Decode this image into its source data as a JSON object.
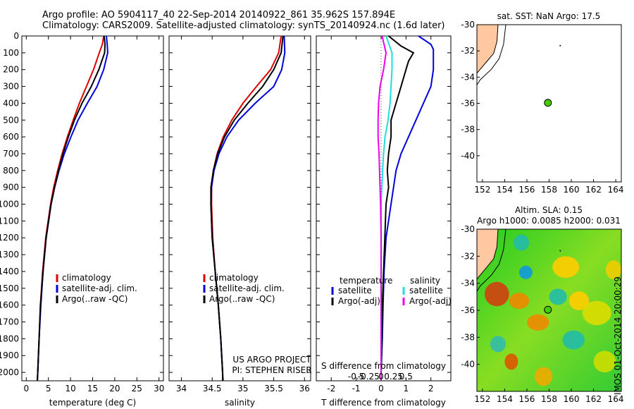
{
  "header": {
    "line1": "Argo profile: AO 5904117_40 22-Sep-2014 20140922_861 35.962S 157.894E",
    "line2": "Climatology: CARS2009. Satellite-adjusted climatology: synTS_20140924.nc (1.6d later)"
  },
  "colors": {
    "climatology": "#dd0000",
    "satellite": "#0000dd",
    "argo": "#000000",
    "sat_salinity": "#22dddd",
    "argo_salinity": "#ee00ee",
    "land": "#ffc8a0",
    "argo_marker": "#44cc00"
  },
  "side_text": "IMOS 01-Oct-2014 20:00:29",
  "chart_data": [
    {
      "id": "temperature",
      "type": "line",
      "xlabel": "temperature (deg C)",
      "ylabel": "",
      "xlim": [
        -1,
        31
      ],
      "ylim": [
        2050,
        0
      ],
      "xticks": [
        0,
        5,
        10,
        15,
        20,
        25,
        30
      ],
      "yticks": [
        0,
        100,
        200,
        300,
        400,
        500,
        600,
        700,
        800,
        900,
        1000,
        1100,
        1200,
        1300,
        1400,
        1500,
        1600,
        1700,
        1800,
        1900,
        2000
      ],
      "legend": {
        "position": "lower-center",
        "entries": [
          "climatology",
          "satellite-adj. clim.",
          "Argo(..raw -QC)"
        ]
      },
      "series": [
        {
          "name": "climatology",
          "color": "#dd0000",
          "depth": [
            0,
            50,
            100,
            200,
            300,
            400,
            500,
            600,
            700,
            800,
            900,
            1000,
            1200,
            1400,
            1600,
            1800,
            2000,
            2050
          ],
          "values": [
            17.5,
            17.2,
            16.5,
            15.2,
            13.6,
            12.0,
            10.6,
            9.3,
            8.1,
            7.1,
            6.2,
            5.5,
            4.4,
            3.7,
            3.2,
            2.9,
            2.6,
            2.5
          ]
        },
        {
          "name": "satellite-adj. clim.",
          "color": "#0000dd",
          "depth": [
            0,
            50,
            100,
            200,
            300,
            400,
            500,
            600,
            700,
            800,
            900,
            1000,
            1200,
            1400,
            1600,
            1800,
            2000,
            2050
          ],
          "values": [
            18.1,
            18.3,
            18.4,
            17.5,
            16.0,
            13.8,
            11.7,
            10.1,
            8.6,
            7.4,
            6.4,
            5.6,
            4.5,
            3.8,
            3.3,
            2.9,
            2.6,
            2.5
          ]
        },
        {
          "name": "Argo(..raw -QC)",
          "color": "#000000",
          "depth": [
            0,
            50,
            100,
            200,
            300,
            400,
            500,
            600,
            700,
            800,
            900,
            1000,
            1200,
            1400,
            1600,
            1800,
            2000,
            2050
          ],
          "values": [
            17.6,
            17.8,
            17.7,
            16.4,
            14.7,
            12.6,
            10.9,
            9.5,
            8.3,
            7.3,
            6.4,
            5.6,
            4.5,
            3.8,
            3.2,
            2.9,
            2.6,
            2.5
          ]
        }
      ]
    },
    {
      "id": "salinity",
      "type": "line",
      "xlabel": "salinity",
      "ylabel": "",
      "xlim": [
        33.8,
        36.1
      ],
      "ylim": [
        2050,
        0
      ],
      "xticks": [
        34,
        34.5,
        35,
        35.5,
        36
      ],
      "legend": {
        "position": "lower-center",
        "entries": [
          "climatology",
          "satellite-adj. clim.",
          "Argo(..raw -QC)"
        ]
      },
      "annotations": [
        "US ARGO PROJECT",
        "PI: STEPHEN RISER"
      ],
      "series": [
        {
          "name": "climatology",
          "color": "#dd0000",
          "depth": [
            0,
            100,
            200,
            300,
            400,
            500,
            600,
            700,
            800,
            900,
            1000,
            1200,
            1400,
            1600,
            1800,
            2000,
            2050
          ],
          "values": [
            35.62,
            35.58,
            35.45,
            35.22,
            35.0,
            34.82,
            34.68,
            34.58,
            34.52,
            34.49,
            34.49,
            34.51,
            34.55,
            34.6,
            34.64,
            34.67,
            34.68
          ]
        },
        {
          "name": "satellite-adj. clim.",
          "color": "#0000dd",
          "depth": [
            0,
            100,
            200,
            300,
            400,
            500,
            600,
            700,
            800,
            900,
            1000,
            1200,
            1400,
            1600,
            1800,
            2000,
            2050
          ],
          "values": [
            35.67,
            35.68,
            35.63,
            35.5,
            35.2,
            34.93,
            34.74,
            34.61,
            34.53,
            34.49,
            34.48,
            34.5,
            34.55,
            34.6,
            34.64,
            34.67,
            34.67
          ]
        },
        {
          "name": "Argo(..raw -QC)",
          "color": "#000000",
          "depth": [
            0,
            100,
            200,
            300,
            400,
            500,
            600,
            700,
            800,
            900,
            1000,
            1200,
            1400,
            1600,
            1800,
            2000,
            2050
          ],
          "values": [
            35.65,
            35.62,
            35.5,
            35.32,
            35.08,
            34.86,
            34.7,
            34.59,
            34.52,
            34.48,
            34.48,
            34.5,
            34.55,
            34.6,
            34.64,
            34.67,
            34.67
          ]
        }
      ]
    },
    {
      "id": "differences",
      "type": "line",
      "xlabel": "T difference from climatology",
      "xlim": [
        -2.6,
        2.8
      ],
      "xticks": [
        -2,
        -1,
        0,
        1,
        2
      ],
      "top_xlabel": "S difference from climatology",
      "top_xticks": [
        -0.5,
        -0.25,
        0,
        0.25,
        0.5
      ],
      "ylim": [
        2050,
        0
      ],
      "legend": {
        "position": "lower-center",
        "headers": [
          "temperature",
          "salinity"
        ],
        "entries": [
          "satellite",
          "Argo(-adj)",
          "satellite",
          "Argo(-adj)"
        ]
      },
      "series": [
        {
          "name": "satellite",
          "quantity": "temperature",
          "color": "#0000dd",
          "depth": [
            0,
            50,
            80,
            100,
            200,
            300,
            400,
            500,
            600,
            700,
            800,
            1000,
            1200,
            1400,
            1600,
            1800,
            2000,
            2050
          ],
          "values": [
            1.5,
            2.0,
            2.1,
            2.1,
            2.1,
            2.0,
            1.7,
            1.4,
            1.1,
            0.8,
            0.6,
            0.4,
            0.2,
            0.12,
            0.08,
            0.05,
            0.0,
            0.0
          ]
        },
        {
          "name": "Argo(-adj)",
          "quantity": "temperature",
          "color": "#000000",
          "depth": [
            0,
            60,
            100,
            150,
            200,
            300,
            400,
            500,
            600,
            700,
            800,
            900,
            1000,
            1200,
            1400,
            1600,
            1800,
            2000,
            2050
          ],
          "values": [
            0.3,
            0.8,
            1.3,
            1.1,
            1.0,
            0.8,
            0.6,
            0.4,
            0.4,
            0.3,
            0.25,
            0.3,
            0.2,
            0.15,
            0.1,
            0.05,
            0.03,
            0.0,
            0.0
          ]
        },
        {
          "name": "satellite",
          "quantity": "salinity",
          "color": "#22dddd",
          "depth": [
            0,
            100,
            200,
            300,
            400,
            500,
            600,
            700,
            800,
            1000,
            1200,
            1400,
            1600,
            1800,
            2000,
            2050
          ],
          "values": [
            0.1,
            0.22,
            0.22,
            0.2,
            0.18,
            0.14,
            0.08,
            0.05,
            0.03,
            0.0,
            0.0,
            0.0,
            0.0,
            0.0,
            0.0,
            0.0
          ]
        },
        {
          "name": "Argo(-adj)",
          "quantity": "salinity",
          "color": "#ee00ee",
          "depth": [
            0,
            100,
            200,
            300,
            400,
            500,
            600,
            700,
            800,
            900,
            1000,
            1200,
            1400,
            1600,
            1800,
            2000,
            2050
          ],
          "values": [
            0.02,
            0.1,
            0.05,
            -0.02,
            -0.05,
            -0.06,
            -0.06,
            -0.04,
            -0.03,
            -0.02,
            -0.01,
            0.0,
            0.0,
            0.0,
            0.0,
            0.0,
            0.0
          ]
        }
      ]
    },
    {
      "id": "sst-map",
      "type": "scatter",
      "title": "sat. SST: NaN Argo: 17.5",
      "xlim": [
        151.5,
        164.5
      ],
      "ylim": [
        -42,
        -30
      ],
      "xticks": [
        152,
        154,
        156,
        158,
        160,
        162,
        164
      ],
      "yticks": [
        -30,
        -32,
        -34,
        -36,
        -38,
        -40
      ],
      "points": [
        {
          "x": 157.89,
          "y": -35.96
        }
      ]
    },
    {
      "id": "sla-map",
      "type": "heatmap",
      "title": "Altim. SLA: 0.15",
      "subtitle": "Argo h1000: 0.0085 h2000: 0.031",
      "xlim": [
        151.5,
        164.5
      ],
      "ylim": [
        -42,
        -30
      ],
      "xticks": [
        152,
        154,
        156,
        158,
        160,
        162,
        164
      ],
      "yticks": [
        -30,
        -32,
        -34,
        -36,
        -38,
        -40
      ],
      "points": [
        {
          "x": 157.89,
          "y": -35.96
        }
      ]
    }
  ]
}
